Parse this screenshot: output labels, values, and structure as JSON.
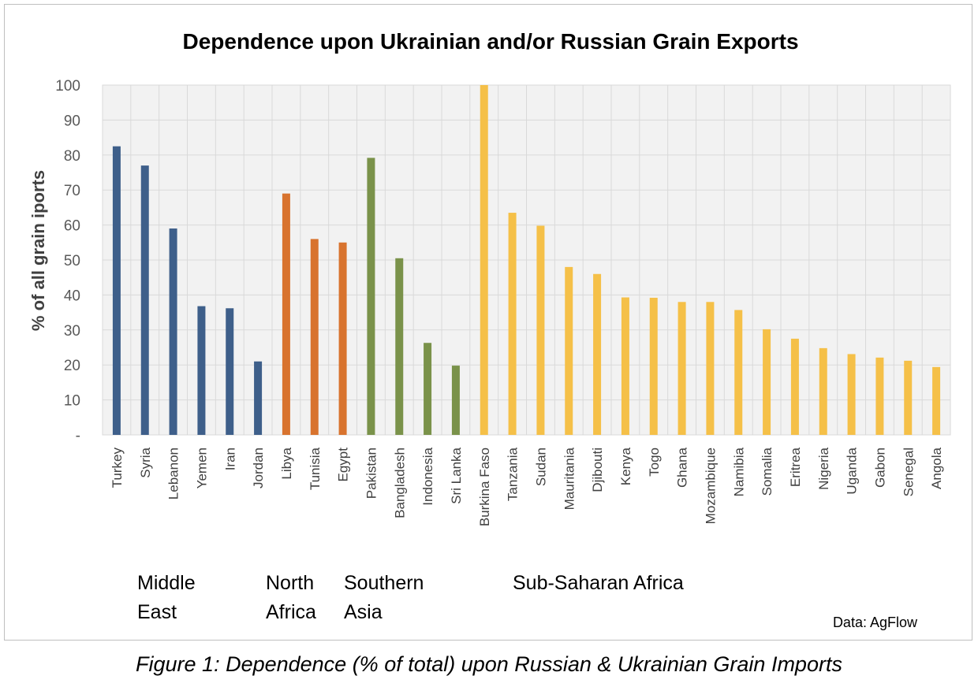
{
  "chart_data": {
    "type": "bar",
    "title": "Dependence upon Ukrainian and/or Russian Grain Exports",
    "xlabel": "",
    "ylabel": "% of all grain iports",
    "ylim": [
      0,
      100
    ],
    "yticks": [
      0,
      10,
      20,
      30,
      40,
      50,
      60,
      70,
      80,
      90,
      100
    ],
    "ytick_labels": [
      "-",
      "10",
      "20",
      "30",
      "40",
      "50",
      "60",
      "70",
      "80",
      "90",
      "100"
    ],
    "grid": true,
    "categories": [
      "Turkey",
      "Syria",
      "Lebanon",
      "Yemen",
      "Iran",
      "Jordan",
      "Libya",
      "Tunisia",
      "Egypt",
      "Pakistan",
      "Bangladesh",
      "Indonesia",
      "Sri Lanka",
      "Burkina Faso",
      "Tanzania",
      "Sudan",
      "Mauritania",
      "Djibouti",
      "Kenya",
      "Togo",
      "Ghana",
      "Mozambique",
      "Namibia",
      "Somalia",
      "Eritrea",
      "Nigeria",
      "Uganda",
      "Gabon",
      "Senegal",
      "Angola"
    ],
    "values": [
      82.5,
      77,
      59,
      36.8,
      36.2,
      21,
      69,
      56,
      55,
      79.2,
      50.5,
      26.3,
      19.8,
      100,
      63.5,
      59.8,
      48,
      46,
      39.3,
      39.2,
      38,
      38,
      35.7,
      30.2,
      27.5,
      24.8,
      23.1,
      22.1,
      21.2,
      19.4
    ],
    "groups": [
      {
        "name": "Middle East",
        "lines": [
          "Middle",
          "East"
        ],
        "color": "#3e5f8a",
        "start": 0,
        "count": 6
      },
      {
        "name": "North Africa",
        "lines": [
          "North",
          "Africa"
        ],
        "color": "#d8732e",
        "start": 6,
        "count": 3
      },
      {
        "name": "Southern Asia",
        "lines": [
          "Southern",
          "Asia"
        ],
        "color": "#7a924a",
        "start": 9,
        "count": 4
      },
      {
        "name": "Sub-Saharan Africa",
        "lines": [
          "Sub-Saharan Africa"
        ],
        "color": "#f5c048",
        "start": 13,
        "count": 17
      }
    ],
    "source": "Data: AgFlow"
  },
  "caption": "Figure 1: Dependence (% of total) upon Russian & Ukrainian Grain Imports"
}
